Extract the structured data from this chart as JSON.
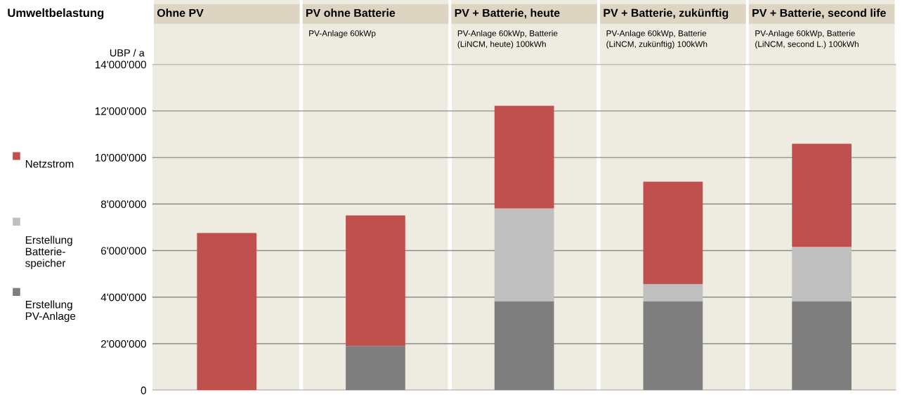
{
  "chart_data": {
    "type": "bar",
    "stacked": true,
    "title": "Umweltbelastung",
    "ylabel": "UBP / a",
    "categories": [
      "Ohne PV",
      "PV ohne Batterie",
      "PV + Batterie, heute",
      "PV + Batterie, zukünftig",
      "PV + Batterie, second life"
    ],
    "series": [
      {
        "name": "Erstellung\nPV-Anlage",
        "color": "#7f7f7f",
        "values": [
          0,
          1900000,
          3830000,
          3830000,
          3830000
        ]
      },
      {
        "name": "Erstellung\nBatterie-\nspeicher",
        "color": "#bfbfbf",
        "values": [
          0,
          0,
          3980000,
          730000,
          2330000
        ]
      },
      {
        "name": "Netzstrom",
        "color": "#c0504d",
        "values": [
          6760000,
          5610000,
          4410000,
          4400000,
          4430000
        ]
      }
    ],
    "ylim": [
      0,
      14000000
    ],
    "yticks": [
      0,
      {
        "value": 2000000,
        "label": "2'000'000"
      },
      {
        "value": 4000000,
        "label": "4'000'000"
      },
      {
        "value": 6000000,
        "label": "6'000'000"
      },
      {
        "value": 8000000,
        "label": "8'000'000"
      },
      {
        "value": 10000000,
        "label": "10'000'000"
      },
      {
        "value": 12000000,
        "label": "12'000'000"
      },
      {
        "value": 14000000,
        "label": "14'000'000"
      }
    ],
    "grid": "y",
    "legend": "left",
    "annotations": [
      "PV-Anlage 60kWp",
      "PV-Anlage 60kWp, Batterie\n(LiNCM, heute) 100kWh",
      "PV-Anlage 60kWp, Batterie\n(LiNCM, zukünftig) 100kWh",
      "PV-Anlage 60kWp, Batterie\n(LiNCM, second L.) 100kWh"
    ]
  }
}
